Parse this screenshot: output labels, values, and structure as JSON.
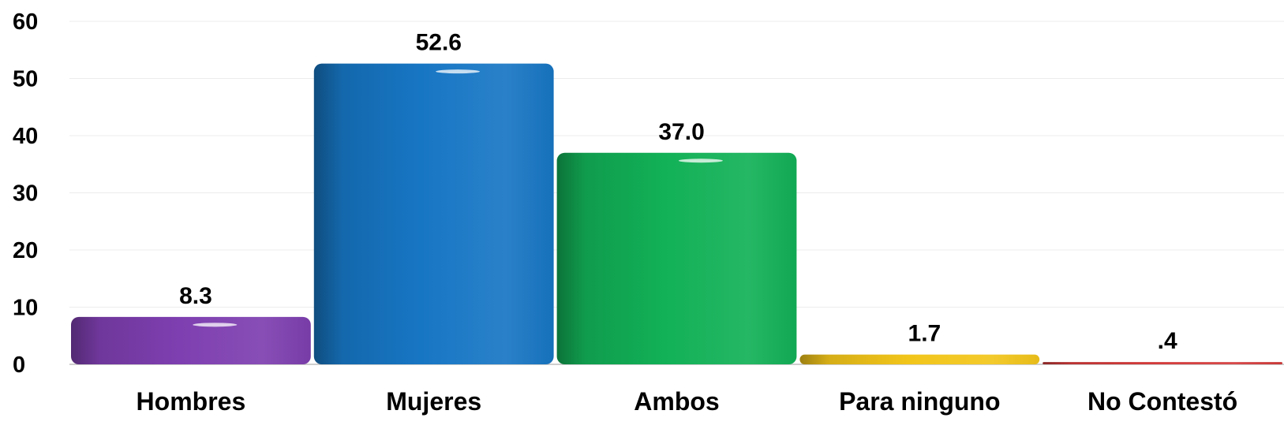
{
  "chart_data": {
    "type": "bar",
    "title": "",
    "xlabel": "",
    "ylabel": "",
    "ylim": [
      0,
      60
    ],
    "yticks": [
      0,
      10,
      20,
      30,
      40,
      50,
      60
    ],
    "grid": true,
    "legend": "none",
    "categories": [
      "Hombres",
      "Mujeres",
      "Ambos",
      "Para ninguno",
      "No Contestó"
    ],
    "values": [
      8.3,
      52.6,
      37.0,
      1.7,
      0.4
    ],
    "value_labels": [
      "8.3",
      "52.6",
      "37.0",
      "1.7",
      ".4"
    ],
    "colors": [
      "#7e3fb0",
      "#1776c4",
      "#12b157",
      "#f2c51a",
      "#d33a3a"
    ]
  }
}
